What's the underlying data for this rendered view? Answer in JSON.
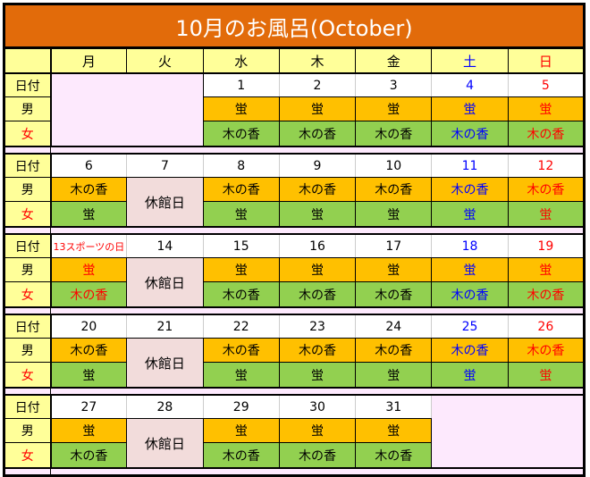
{
  "title": "10月のお風呂(October)",
  "weekdays": [
    "月",
    "火",
    "水",
    "木",
    "金",
    "土",
    "日"
  ],
  "row_labels": {
    "date": "日付",
    "male": "男",
    "female": "女"
  },
  "closed_label": "休館日",
  "colors": {
    "title_bg": "#E26B0A",
    "header_bg": "#FFFF99",
    "male_bath": "#FFC000",
    "female_bath": "#92D050",
    "closed_bg": "#F2DCDB",
    "empty_bg": "#FDE9FD",
    "saturday": "#0000FF",
    "sunday": "#FF0000"
  },
  "weeks": [
    {
      "days": [
        {
          "empty": true
        },
        {
          "empty": true
        },
        {
          "date": "1",
          "male": "蛍",
          "female": "木の香"
        },
        {
          "date": "2",
          "male": "蛍",
          "female": "木の香"
        },
        {
          "date": "3",
          "male": "蛍",
          "female": "木の香"
        },
        {
          "date": "4",
          "male": "蛍",
          "female": "木の香",
          "tone": "sat"
        },
        {
          "date": "5",
          "male": "蛍",
          "female": "木の香",
          "tone": "sun"
        }
      ]
    },
    {
      "days": [
        {
          "date": "6",
          "male": "木の香",
          "female": "蛍"
        },
        {
          "date": "7",
          "closed": true
        },
        {
          "date": "8",
          "male": "木の香",
          "female": "蛍"
        },
        {
          "date": "9",
          "male": "木の香",
          "female": "蛍"
        },
        {
          "date": "10",
          "male": "木の香",
          "female": "蛍"
        },
        {
          "date": "11",
          "male": "木の香",
          "female": "蛍",
          "tone": "sat"
        },
        {
          "date": "12",
          "male": "木の香",
          "female": "蛍",
          "tone": "sun"
        }
      ]
    },
    {
      "days": [
        {
          "date": "13スポーツの日",
          "male": "蛍",
          "female": "木の香",
          "tone": "holiday"
        },
        {
          "date": "14",
          "closed": true
        },
        {
          "date": "15",
          "male": "蛍",
          "female": "木の香"
        },
        {
          "date": "16",
          "male": "蛍",
          "female": "木の香"
        },
        {
          "date": "17",
          "male": "蛍",
          "female": "木の香"
        },
        {
          "date": "18",
          "male": "蛍",
          "female": "木の香",
          "tone": "sat"
        },
        {
          "date": "19",
          "male": "蛍",
          "female": "木の香",
          "tone": "sun"
        }
      ]
    },
    {
      "days": [
        {
          "date": "20",
          "male": "木の香",
          "female": "蛍"
        },
        {
          "date": "21",
          "closed": true
        },
        {
          "date": "22",
          "male": "木の香",
          "female": "蛍"
        },
        {
          "date": "23",
          "male": "木の香",
          "female": "蛍"
        },
        {
          "date": "24",
          "male": "木の香",
          "female": "蛍"
        },
        {
          "date": "25",
          "male": "木の香",
          "female": "蛍",
          "tone": "sat"
        },
        {
          "date": "26",
          "male": "木の香",
          "female": "蛍",
          "tone": "sun"
        }
      ]
    },
    {
      "days": [
        {
          "date": "27",
          "male": "蛍",
          "female": "木の香"
        },
        {
          "date": "28",
          "closed": true
        },
        {
          "date": "29",
          "male": "蛍",
          "female": "木の香"
        },
        {
          "date": "30",
          "male": "蛍",
          "female": "木の香"
        },
        {
          "date": "31",
          "male": "蛍",
          "female": "木の香"
        },
        {
          "empty": true
        },
        {
          "empty": true
        }
      ]
    }
  ]
}
